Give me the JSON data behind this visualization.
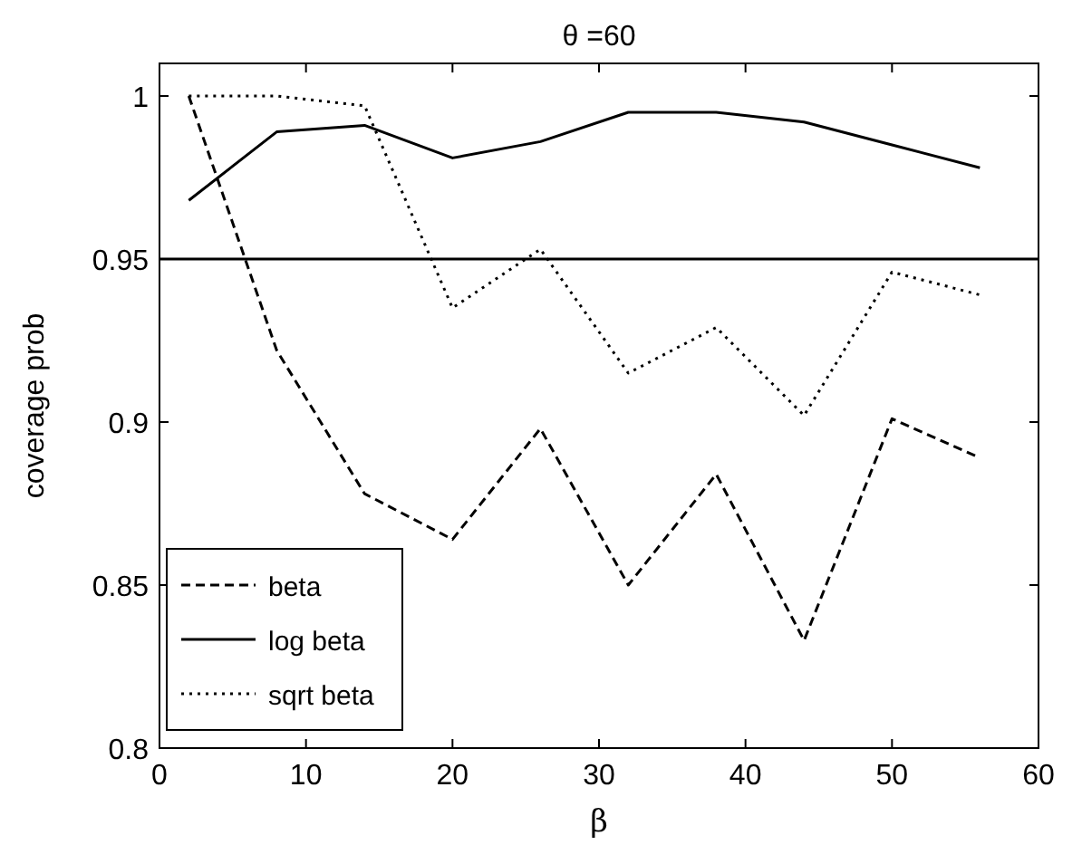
{
  "chart_data": {
    "type": "line",
    "title": "θ =60",
    "xlabel": "β",
    "ylabel": "coverage prob",
    "x": [
      2,
      8,
      14,
      20,
      26,
      32,
      38,
      44,
      50,
      56
    ],
    "series": [
      {
        "name": "beta",
        "color": "#000000",
        "line_style": "dashed",
        "values": [
          1.0,
          0.922,
          0.878,
          0.864,
          0.898,
          0.85,
          0.884,
          0.833,
          0.901,
          0.889
        ]
      },
      {
        "name": "log beta",
        "color": "#000000",
        "line_style": "solid",
        "values": [
          0.968,
          0.989,
          0.991,
          0.981,
          0.986,
          0.995,
          0.995,
          0.992,
          0.985,
          0.978
        ]
      },
      {
        "name": "sqrt beta",
        "color": "#000000",
        "line_style": "dotted",
        "values": [
          1.0,
          1.0,
          0.997,
          0.935,
          0.953,
          0.915,
          0.929,
          0.902,
          0.946,
          0.939
        ]
      }
    ],
    "xlim": [
      0,
      60
    ],
    "xticks": [
      0,
      10,
      20,
      30,
      40,
      50,
      60
    ],
    "ylim": [
      0.8,
      1.01
    ],
    "yticks": [
      {
        "value": 0.8,
        "label": "0.8"
      },
      {
        "value": 0.85,
        "label": "0.85"
      },
      {
        "value": 0.9,
        "label": "0.9"
      },
      {
        "value": 0.95,
        "label": "0.95"
      },
      {
        "value": 1,
        "label": "1"
      }
    ],
    "ref_lines": [
      {
        "axis": "y",
        "value": 0.95,
        "color": "#000000"
      }
    ],
    "grid": false,
    "legend": "bottom left"
  }
}
